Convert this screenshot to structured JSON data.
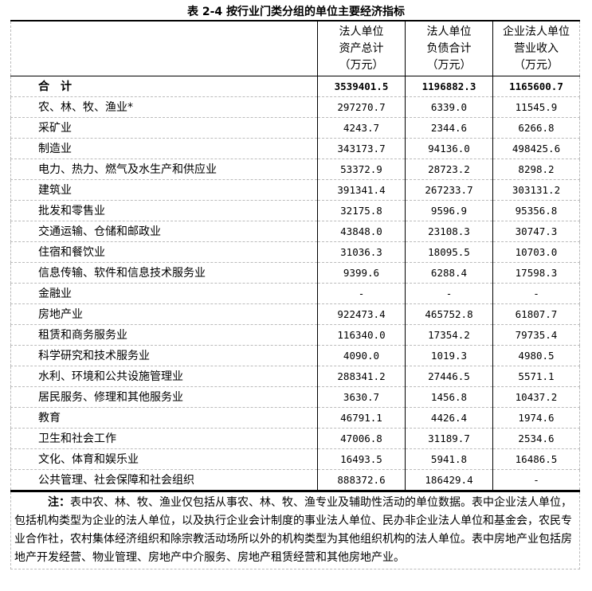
{
  "title": "表 2-4 按行业门类分组的单位主要经济指标",
  "headers": [
    [
      "法人单位",
      "资产总计",
      "（万元）"
    ],
    [
      "法人单位",
      "负债合计",
      "（万元）"
    ],
    [
      "企业法人单位",
      "营业收入",
      "（万元）"
    ]
  ],
  "total": {
    "label": "合计",
    "values": [
      "3539401.5",
      "1196882.3",
      "1165600.7"
    ]
  },
  "rows": [
    {
      "label": "农、林、牧、渔业*",
      "values": [
        "297270.7",
        "6339.0",
        "11545.9"
      ]
    },
    {
      "label": "采矿业",
      "values": [
        "4243.7",
        "2344.6",
        "6266.8"
      ]
    },
    {
      "label": "制造业",
      "values": [
        "343173.7",
        "94136.0",
        "498425.6"
      ]
    },
    {
      "label": "电力、热力、燃气及水生产和供应业",
      "values": [
        "53372.9",
        "28723.2",
        "8298.2"
      ]
    },
    {
      "label": "建筑业",
      "values": [
        "391341.4",
        "267233.7",
        "303131.2"
      ]
    },
    {
      "label": "批发和零售业",
      "values": [
        "32175.8",
        "9596.9",
        "95356.8"
      ]
    },
    {
      "label": "交通运输、仓储和邮政业",
      "values": [
        "43848.0",
        "23108.3",
        "30747.3"
      ]
    },
    {
      "label": "住宿和餐饮业",
      "values": [
        "31036.3",
        "18095.5",
        "10703.0"
      ]
    },
    {
      "label": "信息传输、软件和信息技术服务业",
      "values": [
        "9399.6",
        "6288.4",
        "17598.3"
      ]
    },
    {
      "label": "金融业",
      "values": [
        "-",
        "-",
        "-"
      ]
    },
    {
      "label": "房地产业",
      "values": [
        "922473.4",
        "465752.8",
        "61807.7"
      ]
    },
    {
      "label": "租赁和商务服务业",
      "values": [
        "116340.0",
        "17354.2",
        "79735.4"
      ]
    },
    {
      "label": "科学研究和技术服务业",
      "values": [
        "4090.0",
        "1019.3",
        "4980.5"
      ]
    },
    {
      "label": "水利、环境和公共设施管理业",
      "values": [
        "288341.2",
        "27446.5",
        "5571.1"
      ]
    },
    {
      "label": "居民服务、修理和其他服务业",
      "values": [
        "3630.7",
        "1456.8",
        "10437.2"
      ]
    },
    {
      "label": "教育",
      "values": [
        "46791.1",
        "4426.4",
        "1974.6"
      ]
    },
    {
      "label": "卫生和社会工作",
      "values": [
        "47006.8",
        "31189.7",
        "2534.6"
      ]
    },
    {
      "label": "文化、体育和娱乐业",
      "values": [
        "16493.5",
        "5941.8",
        "16486.5"
      ]
    },
    {
      "label": "公共管理、社会保障和社会组织",
      "values": [
        "888372.6",
        "186429.4",
        "-"
      ]
    }
  ],
  "note": {
    "prefix": "注：",
    "text": "表中农、林、牧、渔业仅包括从事农、林、牧、渔专业及辅助性活动的单位数据。表中企业法人单位，包括机构类型为企业的法人单位，以及执行企业会计制度的事业法人单位、民办非企业法人单位和基金会，农民专业合作社，农村集体经济组织和除宗教活动场所以外的机构类型为其他组织机构的法人单位。表中房地产业包括房地产开发经营、物业管理、房地产中介服务、房地产租赁经营和其他房地产业。"
  }
}
